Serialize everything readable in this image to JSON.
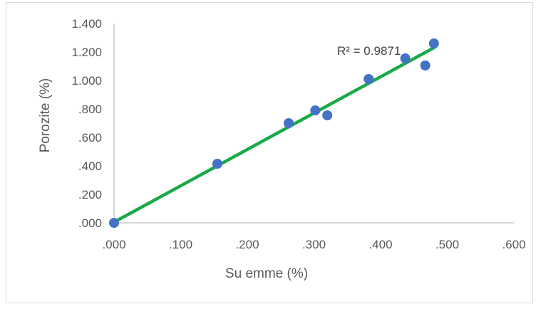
{
  "chart_data": {
    "type": "scatter",
    "title": "",
    "xlabel": "Su emme (%)",
    "ylabel": "Porozite (%)",
    "xlim": [
      0,
      0.6
    ],
    "ylim": [
      0,
      1.4
    ],
    "x_tick_labels": [
      ".000",
      ".100",
      ".200",
      ".300",
      ".400",
      ".500",
      ".600"
    ],
    "y_tick_labels": [
      ".000",
      ".200",
      ".400",
      ".600",
      ".800",
      "1.000",
      "1.200",
      "1.400"
    ],
    "grid": false,
    "points": [
      {
        "x": 0.0,
        "y": 0.0
      },
      {
        "x": 0.155,
        "y": 0.415
      },
      {
        "x": 0.262,
        "y": 0.7
      },
      {
        "x": 0.302,
        "y": 0.79
      },
      {
        "x": 0.32,
        "y": 0.755
      },
      {
        "x": 0.382,
        "y": 1.01
      },
      {
        "x": 0.437,
        "y": 1.155
      },
      {
        "x": 0.467,
        "y": 1.105
      },
      {
        "x": 0.48,
        "y": 1.26
      }
    ],
    "trendline": {
      "type": "linear",
      "x_range": [
        0,
        0.48
      ],
      "y_range": [
        0.005,
        1.23
      ]
    },
    "annotation": "R² = 0.9871",
    "colors": {
      "points": "#4472c4",
      "trendline": "#1aaa4a",
      "axis": "#bfbfbf"
    }
  }
}
